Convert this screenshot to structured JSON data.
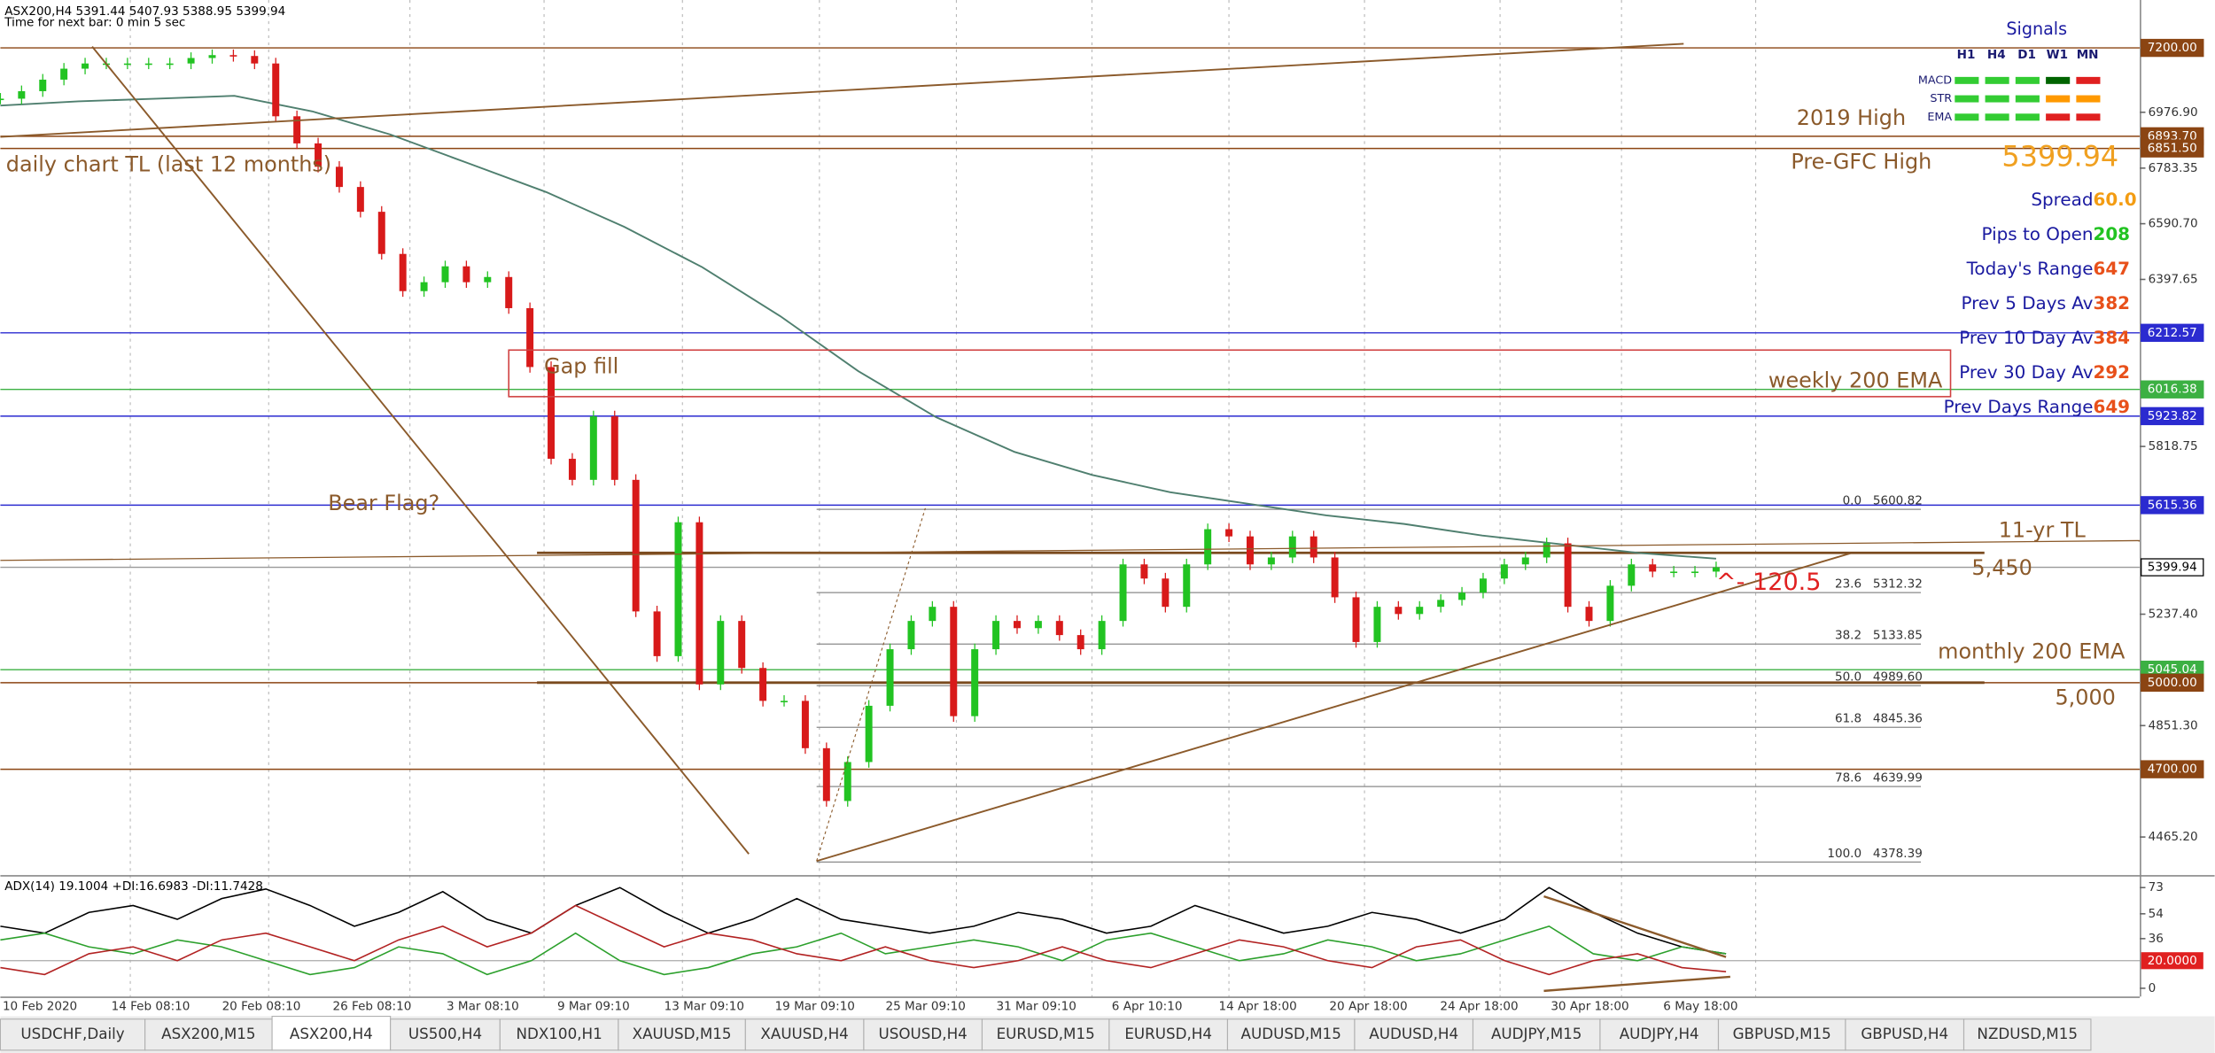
{
  "header": {
    "title": "ASX200,H4  5391.44 5407.93 5388.95 5399.94",
    "timer": "Time for next bar: 0 min 5 sec"
  },
  "chart_data": [
    {
      "type": "line",
      "x_tick_labels": [
        "10 Feb 2020",
        "14 Feb 08:10",
        "20 Feb 08:10",
        "26 Feb 08:10",
        "3 Mar 08:10",
        "9 Mar 09:10",
        "13 Mar 09:10",
        "19 Mar 09:10",
        "25 Mar 09:10",
        "31 Mar 09:10",
        "6 Apr 10:10",
        "14 Apr 18:00",
        "20 Apr 18:00",
        "24 Apr 18:00",
        "30 Apr 18:00",
        "6 May 18:00"
      ],
      "values": [
        7024,
        7050,
        7090,
        7128,
        7146,
        7146,
        7146,
        7146,
        7146,
        7165,
        7175,
        7172,
        7146,
        6963,
        6869,
        6788,
        6718,
        6632,
        6486,
        6357,
        6388,
        6443,
        6388,
        6406,
        6298,
        6094,
        5776,
        5703,
        5923,
        5703,
        5247,
        5092,
        5556,
        4994,
        5214,
        5051,
        4937,
        4937,
        4773,
        4590,
        4725,
        4920,
        5116,
        5214,
        5263,
        4884,
        5116,
        5214,
        5189,
        5214,
        5165,
        5116,
        5214,
        5410,
        5361,
        5263,
        5410,
        5532,
        5507,
        5410,
        5434,
        5507,
        5434,
        5296,
        5141,
        5263,
        5238,
        5263,
        5287,
        5312,
        5361,
        5410,
        5434,
        5483,
        5263,
        5214,
        5336,
        5410,
        5385,
        5385,
        5385,
        5400
      ],
      "up_color": "#22c322",
      "down_color": "#d81a1a",
      "ema": {
        "color": "#4f7f6f",
        "values": [
          7000,
          7015,
          7024,
          7034,
          6980,
          6900,
          6800,
          6700,
          6580,
          6440,
          6270,
          6080,
          5920,
          5800,
          5720,
          5660,
          5620,
          5580,
          5550,
          5510,
          5480,
          5450,
          5430
        ]
      },
      "ylim": [
        4333,
        7366
      ],
      "yticks": [
        {
          "value": 6976.9,
          "label": "6976.90"
        },
        6783.35,
        {
          "value": 6590.7,
          "label": "6590.70"
        },
        6397.65,
        5818.75,
        {
          "value": 5237.4,
          "label": "5237.40"
        },
        {
          "value": 4851.3,
          "label": "4851.30"
        },
        {
          "value": 4465.2,
          "label": "4465.20"
        }
      ],
      "levels": [
        {
          "value": 7200,
          "label": "7200.00",
          "color": "#8b4513",
          "text_color": "#ffffff"
        },
        {
          "value": 6893.7,
          "label": "6893.70",
          "color": "#8b4513",
          "text_color": "#ffffff"
        },
        {
          "value": 6851.5,
          "label": "6851.50",
          "color": "#8b4513",
          "text_color": "#ffffff"
        },
        {
          "value": 6212.57,
          "label": "6212.57",
          "color": "#2b2bd0",
          "text_color": "#ffffff"
        },
        {
          "value": 6016.38,
          "label": "6016.38",
          "color": "#3cb043",
          "text_color": "#ffffff"
        },
        {
          "value": 5923.82,
          "label": "5923.82",
          "color": "#2b2bd0",
          "text_color": "#ffffff"
        },
        {
          "value": 5615.36,
          "label": "5615.36",
          "color": "#2b2bd0",
          "text_color": "#ffffff"
        },
        {
          "value": 5399.94,
          "label": "5399.94",
          "color": "#ffffff",
          "text_color": "#000000"
        },
        {
          "value": 5045.04,
          "label": "5045.04",
          "color": "#3cb043",
          "text_color": "#ffffff"
        },
        {
          "value": 5000,
          "label": "5000.00",
          "color": "#8b4513",
          "text_color": "#ffffff"
        },
        {
          "value": 4700,
          "label": "4700.00",
          "color": "#8b4513",
          "text_color": "#ffffff"
        }
      ],
      "fibonacci": {
        "color": "#8a8a8a",
        "levels": [
          {
            "ratio": {
              "value": 0,
              "label": "0.0"
            },
            "price": 5600.82
          },
          {
            "ratio": 23.6,
            "price": 5312.32
          },
          {
            "ratio": 38.2,
            "price": 5133.85
          },
          {
            "ratio": {
              "value": 50,
              "label": "50.0"
            },
            "price": {
              "value": 4989.6,
              "label": "4989.60"
            }
          },
          {
            "ratio": 61.8,
            "price": 4845.36
          },
          {
            "ratio": 78.6,
            "price": 4639.99
          },
          {
            "ratio": {
              "value": 100,
              "label": "100.0"
            },
            "price": 4378.39
          }
        ]
      },
      "annotation_color": "#8b5a2b",
      "annotations": [
        {
          "text": "daily chart TL (last 12 months)"
        },
        {
          "text": "Gap fill"
        },
        {
          "text": "Bear Flag?"
        },
        {
          "text": "weekly 200 EMA"
        },
        {
          "text": "2019 High"
        },
        {
          "text": "Pre-GFC High"
        },
        {
          "text": "11-yr TL"
        },
        {
          "text": "5,450",
          "value": 5450
        },
        {
          "text": "monthly 200 EMA"
        },
        {
          "text": "5,000",
          "value": 5000
        },
        {
          "text": "^- 120.5",
          "color": "#e02020"
        }
      ]
    },
    {
      "type": "line",
      "title": "ADX(14) 19.1004 +DI:16.6983 -DI:11.7428",
      "ylim": [
        -6,
        81
      ],
      "yticks": [
        73,
        54,
        36,
        0
      ],
      "level": {
        "value": 20,
        "label": "20.0000",
        "color": "#e02020"
      },
      "series": [
        {
          "color": "#000000",
          "values": [
            45,
            40,
            55,
            60,
            50,
            65,
            72,
            60,
            45,
            55,
            70,
            50,
            40,
            60,
            73,
            55,
            40,
            50,
            65,
            50,
            45,
            40,
            45,
            55,
            50,
            40,
            45,
            60,
            50,
            40,
            45,
            55,
            50,
            40,
            50,
            73,
            55,
            40,
            30,
            25
          ]
        },
        {
          "color": "#2ca02c",
          "values": [
            35,
            40,
            30,
            25,
            35,
            30,
            20,
            10,
            15,
            30,
            25,
            10,
            20,
            40,
            20,
            10,
            15,
            25,
            30,
            40,
            25,
            30,
            35,
            30,
            20,
            35,
            40,
            30,
            20,
            25,
            35,
            30,
            20,
            25,
            35,
            45,
            25,
            20,
            30,
            25
          ]
        },
        {
          "color": "#b22222",
          "values": [
            15,
            10,
            25,
            30,
            20,
            35,
            40,
            30,
            20,
            35,
            45,
            30,
            40,
            60,
            45,
            30,
            40,
            35,
            25,
            20,
            30,
            20,
            15,
            20,
            30,
            20,
            15,
            25,
            35,
            30,
            20,
            15,
            30,
            35,
            20,
            10,
            20,
            25,
            15,
            12
          ]
        }
      ]
    }
  ],
  "signals": {
    "title": "Signals",
    "columns": [
      "H1",
      "H4",
      "D1",
      "W1",
      "MN"
    ],
    "rows": [
      {
        "label": "MACD",
        "colors": [
          "#33cc33",
          "#33cc33",
          "#33cc33",
          "#006400",
          "#e02020"
        ]
      },
      {
        "label": "STR",
        "colors": [
          "#33cc33",
          "#33cc33",
          "#33cc33",
          "#ff9900",
          "#ff9900"
        ]
      },
      {
        "label": "EMA",
        "colors": [
          "#33cc33",
          "#33cc33",
          "#33cc33",
          "#e02020",
          "#e02020"
        ]
      }
    ]
  },
  "info": {
    "price": 5399.94,
    "price_color": "#f0a020",
    "rows": [
      {
        "label": "Spread",
        "value": {
          "value": 60,
          "label": "60.0"
        },
        "color": "#f39c12"
      },
      {
        "label": "Pips to Open",
        "value": 208,
        "color": "#22c322"
      },
      {
        "label": "Today's Range",
        "value": 647,
        "color": "#e8501a"
      },
      {
        "label": "Prev 5 Days Av",
        "value": 382,
        "color": "#e8501a"
      },
      {
        "label": "Prev 10 Day Av",
        "value": 384,
        "color": "#e8501a"
      },
      {
        "label": "Prev 30 Day Av",
        "value": 292,
        "color": "#e8501a"
      },
      {
        "label": "Prev Days Range",
        "value": 649,
        "color": "#e8501a"
      }
    ]
  },
  "tabs": [
    "USDCHF,Daily",
    "ASX200,M15",
    "ASX200,H4",
    "US500,H4",
    "NDX100,H1",
    "XAUUSD,M15",
    "XAUUSD,H4",
    "USOUSD,H4",
    "EURUSD,M15",
    "EURUSD,H4",
    "AUDUSD,M15",
    "AUDUSD,H4",
    "AUDJPY,M15",
    "AUDJPY,H4",
    "GBPUSD,M15",
    "GBPUSD,H4",
    "NZDUSD,M15"
  ],
  "active_tab": 2
}
